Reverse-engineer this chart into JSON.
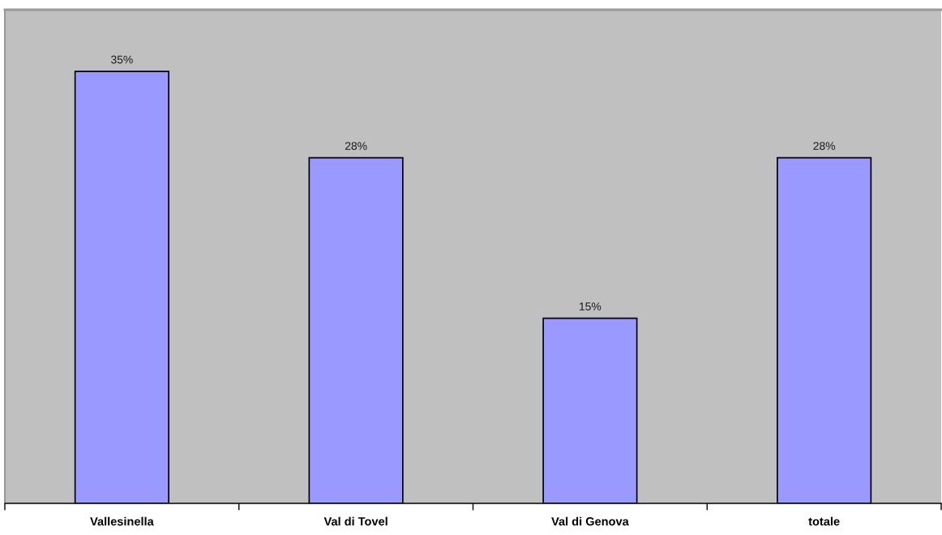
{
  "chart_data": {
    "type": "bar",
    "categories": [
      "Vallesinella",
      "Val di Tovel",
      "Val di Genova",
      "totale"
    ],
    "values": [
      35,
      28,
      15,
      28
    ],
    "value_labels": [
      "35%",
      "28%",
      "15%",
      "28%"
    ],
    "color": "#9999ff",
    "ylim": [
      0,
      40
    ],
    "tick_labels": "x"
  }
}
